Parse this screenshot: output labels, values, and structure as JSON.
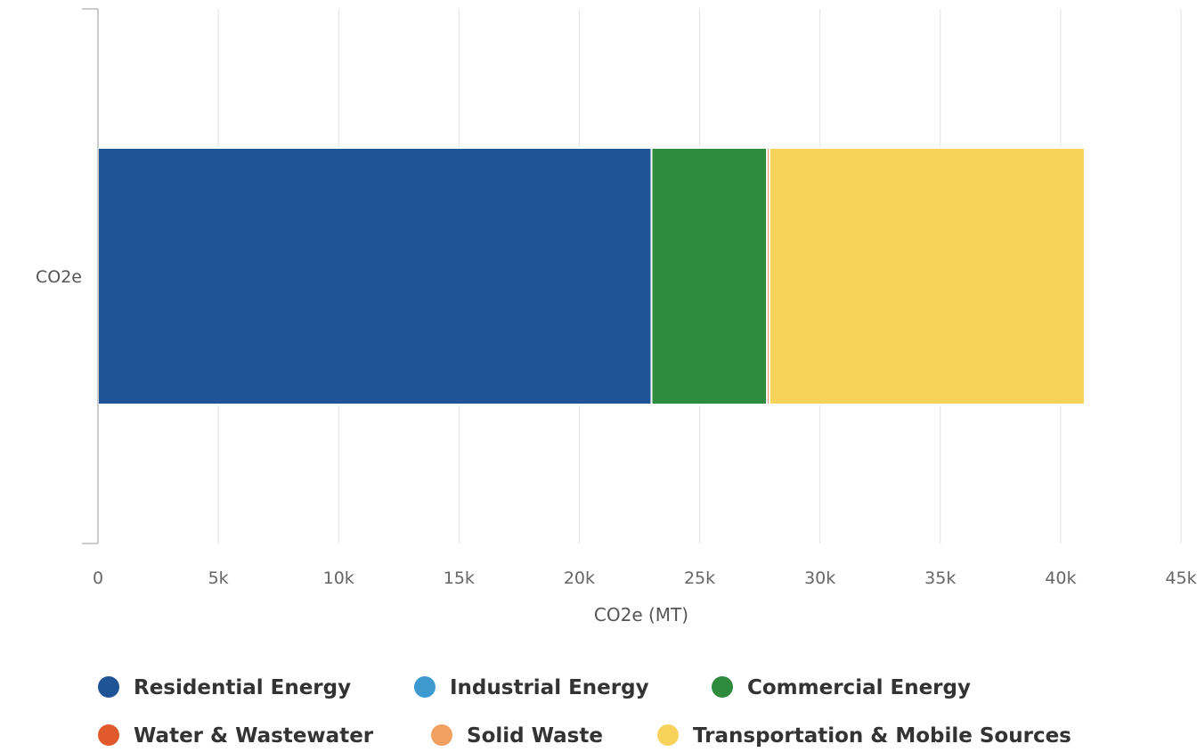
{
  "chart_data": {
    "type": "bar",
    "orientation": "horizontal",
    "stacked": true,
    "categories": [
      "CO2e"
    ],
    "xlabel": "CO2e (MT)",
    "xlim": [
      0,
      45000
    ],
    "xticks": [
      0,
      5000,
      10000,
      15000,
      20000,
      25000,
      30000,
      35000,
      40000,
      45000
    ],
    "xtick_labels": [
      "0",
      "5k",
      "10k",
      "15k",
      "20k",
      "25k",
      "30k",
      "35k",
      "40k",
      "45k"
    ],
    "grid": true,
    "legend_position": "bottom",
    "series": [
      {
        "name": "Residential Energy",
        "values": [
          23000
        ],
        "color": "#1f5597"
      },
      {
        "name": "Industrial Energy",
        "values": [
          0
        ],
        "color": "#3d9ad1"
      },
      {
        "name": "Commercial Energy",
        "values": [
          4800
        ],
        "color": "#2e8b3d"
      },
      {
        "name": "Water & Wastewater",
        "values": [
          100
        ],
        "color": "#e05a2b"
      },
      {
        "name": "Solid Waste",
        "values": [
          0
        ],
        "color": "#f0a060"
      },
      {
        "name": "Transportation & Mobile Sources",
        "values": [
          13100
        ],
        "color": "#f7d25a"
      }
    ]
  }
}
